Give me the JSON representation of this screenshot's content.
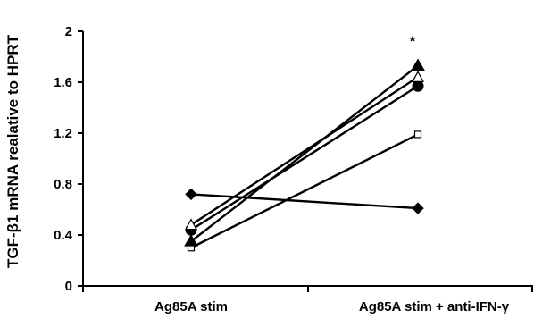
{
  "chart_data": {
    "type": "line",
    "title": "",
    "xlabel": "",
    "ylabel": "TGF-β1 mRNA realative to HPRT",
    "categories": [
      "Ag85A stim",
      "Ag85A stim + anti-IFN-γ"
    ],
    "ylim": [
      0,
      2
    ],
    "yticks": [
      0,
      0.4,
      0.8,
      1.2,
      1.6,
      2
    ],
    "ytick_labels": [
      "0",
      "0.4",
      "0.8",
      "1.2",
      "1.6",
      "2"
    ],
    "grid": false,
    "legend": "none",
    "annotations": [
      {
        "text": "*",
        "category": "Ag85A stim + anti-IFN-γ",
        "y": 1.9
      }
    ],
    "series": [
      {
        "marker": "diamond-filled",
        "values": [
          0.72,
          0.61
        ]
      },
      {
        "marker": "square-open",
        "values": [
          0.3,
          1.19
        ]
      },
      {
        "marker": "triangle-filled",
        "values": [
          0.35,
          1.73
        ]
      },
      {
        "marker": "circle-filled",
        "values": [
          0.44,
          1.57
        ]
      },
      {
        "marker": "triangle-open",
        "values": [
          0.48,
          1.64
        ]
      }
    ]
  }
}
